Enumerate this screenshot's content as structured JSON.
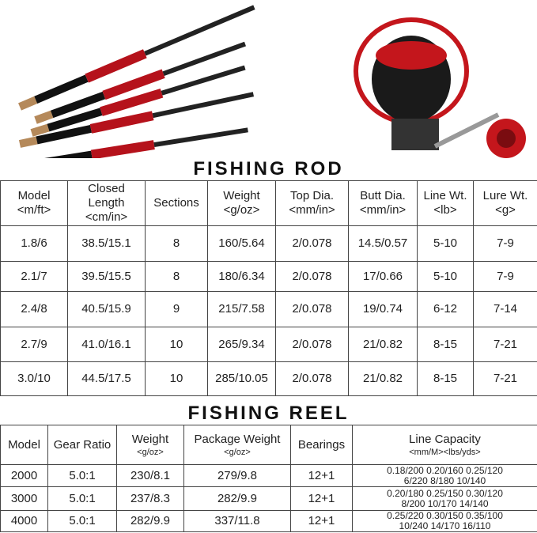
{
  "rod_title": "FISHING ROD",
  "rod_table": {
    "header": [
      [
        "Model",
        "<m/ft>"
      ],
      [
        "Closed",
        "Length",
        "<cm/in>"
      ],
      [
        "Sections"
      ],
      [
        "Weight",
        "<g/oz>"
      ],
      [
        "Top Dia.",
        "<mm/in>"
      ],
      [
        "Butt Dia.",
        "<mm/in>"
      ],
      [
        "Line Wt.",
        "<lb>"
      ],
      [
        "Lure Wt.",
        "<g>"
      ]
    ],
    "rows": [
      [
        "1.8/6",
        "38.5/15.1",
        "8",
        "160/5.64",
        "2/0.078",
        "14.5/0.57",
        "5-10",
        "7-9"
      ],
      [
        "2.1/7",
        "39.5/15.5",
        "8",
        "180/6.34",
        "2/0.078",
        "17/0.66",
        "5-10",
        "7-9"
      ],
      [
        "2.4/8",
        "40.5/15.9",
        "9",
        "215/7.58",
        "2/0.078",
        "19/0.74",
        "6-12",
        "7-14"
      ],
      [
        "2.7/9",
        "41.0/16.1",
        "10",
        "265/9.34",
        "2/0.078",
        "21/0.82",
        "8-15",
        "7-21"
      ],
      [
        "3.0/10",
        "44.5/17.5",
        "10",
        "285/10.05",
        "2/0.078",
        "21/0.82",
        "8-15",
        "7-21"
      ]
    ]
  },
  "reel_title": "FISHING REEL",
  "reel_table": {
    "header": [
      [
        "Model"
      ],
      [
        "Gear Ratio"
      ],
      [
        "Weight",
        "<g/oz>"
      ],
      [
        "Package Weight",
        "<g/oz>"
      ],
      [
        "Bearings"
      ],
      [
        "Line Capacity",
        "<mm/M><lbs/yds>"
      ]
    ],
    "rows": [
      [
        [
          "2000"
        ],
        [
          "5.0:1"
        ],
        [
          "230/8.1"
        ],
        [
          "279/9.8"
        ],
        [
          "12+1"
        ],
        [
          "0.18/200 0.20/160 0.25/120",
          "6/220 8/180 10/140"
        ]
      ],
      [
        [
          "3000"
        ],
        [
          "5.0:1"
        ],
        [
          "237/8.3"
        ],
        [
          "282/9.9"
        ],
        [
          "12+1"
        ],
        [
          "0.20/180 0.25/150 0.30/120",
          "8/200 10/170 14/140"
        ]
      ],
      [
        [
          "4000"
        ],
        [
          "5.0:1"
        ],
        [
          "282/9.9"
        ],
        [
          "337/11.8"
        ],
        [
          "12+1"
        ],
        [
          "0.25/220 0.30/150 0.35/100",
          "10/240 14/170 16/110"
        ]
      ]
    ]
  }
}
